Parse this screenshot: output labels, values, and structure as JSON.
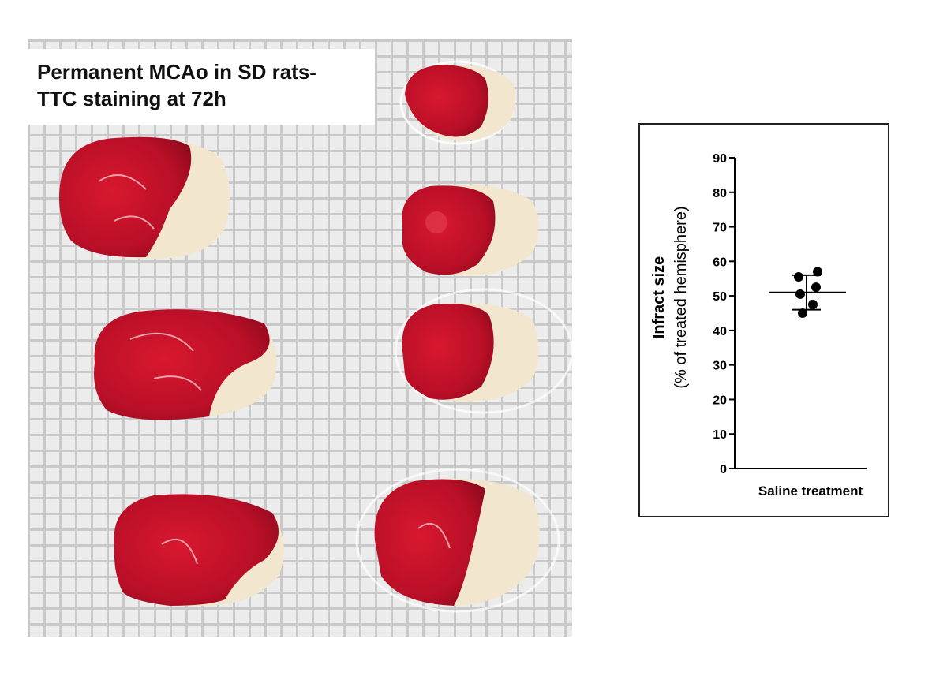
{
  "photo": {
    "caption_line1": "Permanent MCAo  in SD rats-",
    "caption_line2": "TTC staining at 72h",
    "colors": {
      "infarct_tissue": "#f3e6cf",
      "viable_tissue": "#c8102e",
      "grid_background": "#dcdcdc"
    }
  },
  "chart_data": {
    "type": "scatter",
    "ylabel_line1": "Infract size",
    "ylabel_line2": "(% of treated hemisphere)",
    "categories": [
      "Saline treatment"
    ],
    "ylim": [
      0,
      90
    ],
    "yticks": [
      0,
      10,
      20,
      30,
      40,
      50,
      60,
      70,
      80,
      90
    ],
    "series": [
      {
        "values": [
          57,
          55.5,
          52.5,
          50.5,
          47.5,
          45
        ]
      }
    ],
    "mean": 51,
    "sd_upper": 56,
    "sd_lower": 46,
    "grid": false
  }
}
